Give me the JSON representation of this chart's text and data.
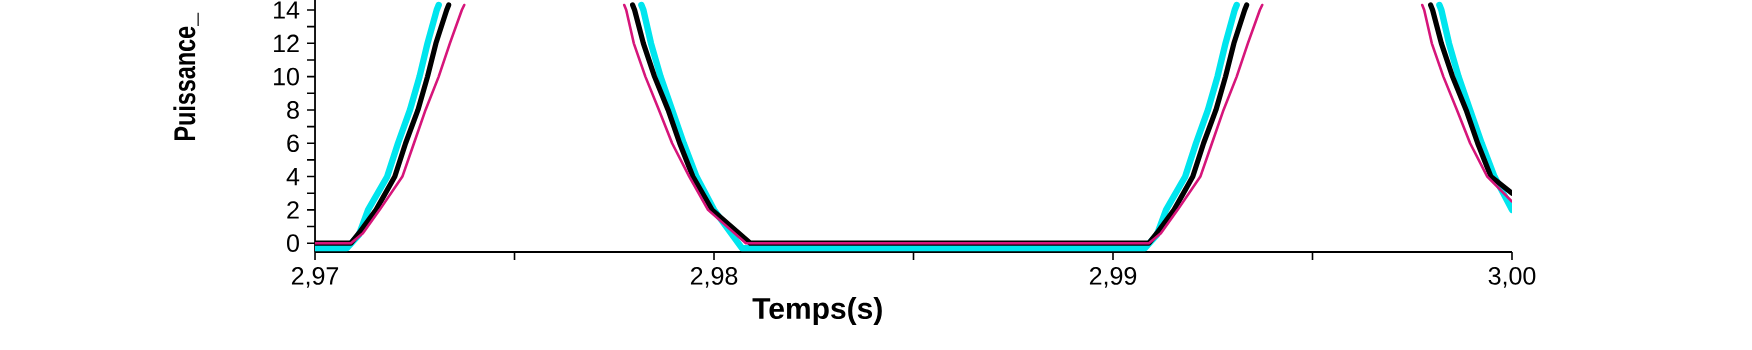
{
  "chart_data": {
    "type": "line",
    "xlabel": "Temps(s)",
    "ylabel": "Puissance_",
    "xlim": [
      2.97,
      3.0
    ],
    "ylim": [
      -0.53,
      14.6
    ],
    "xticks": [
      {
        "value": 2.97,
        "label": "2,97"
      },
      {
        "value": 2.975,
        "label": null
      },
      {
        "value": 2.98,
        "label": "2,98"
      },
      {
        "value": 2.985,
        "label": null
      },
      {
        "value": 2.99,
        "label": "2,99"
      },
      {
        "value": 2.995,
        "label": null
      },
      {
        "value": 3.0,
        "label": "3,00"
      }
    ],
    "yticks": [
      0,
      {
        "value": 1,
        "label": null
      },
      2,
      {
        "value": 3,
        "label": null
      },
      4,
      {
        "value": 5,
        "label": null
      },
      6,
      {
        "value": 7,
        "label": null
      },
      8,
      {
        "value": 9,
        "label": null
      },
      10,
      {
        "value": 11,
        "label": null
      },
      12,
      {
        "value": 13,
        "label": null
      },
      14
    ],
    "grid": false,
    "marker": "none",
    "line_style": "solid",
    "series": [
      {
        "color": "#00e5ee",
        "x": [
          2.97,
          2.9708,
          2.9711,
          2.97133,
          2.97181,
          2.97208,
          2.97238,
          2.97262,
          2.97282,
          2.97305,
          2.9731,
          2.9757,
          2.97818,
          2.97823,
          2.97842,
          2.97866,
          2.97895,
          2.97924,
          2.97956,
          2.98,
          2.9807,
          2.9908,
          2.9911,
          2.99133,
          2.99181,
          2.99208,
          2.99238,
          2.99262,
          2.99282,
          2.99305,
          2.9931,
          2.9957,
          2.99818,
          2.99823,
          2.99842,
          2.99866,
          2.99895,
          2.99924,
          2.99956,
          3.0
        ],
        "values": [
          -0.3,
          -0.3,
          0.5,
          2,
          4,
          6,
          8,
          10,
          12,
          14,
          14.3,
          null,
          14.3,
          14,
          12,
          10,
          8,
          6,
          4,
          2,
          -0.3,
          -0.3,
          0.5,
          2,
          4,
          6,
          8,
          10,
          12,
          14,
          14.3,
          null,
          14.3,
          14,
          12,
          10,
          8,
          6,
          4,
          2
        ]
      },
      {
        "color": "#000000",
        "x": [
          2.97,
          2.9709,
          2.9711,
          2.97153,
          2.972,
          2.97227,
          2.97258,
          2.97282,
          2.97303,
          2.9733,
          2.97335,
          2.9757,
          2.97796,
          2.97801,
          2.97823,
          2.97851,
          2.97885,
          2.97914,
          2.97947,
          2.97995,
          2.98091,
          2.9909,
          2.9911,
          2.99153,
          2.992,
          2.99227,
          2.99258,
          2.99282,
          2.99303,
          2.9933,
          2.99335,
          2.9957,
          2.99796,
          2.99801,
          2.99823,
          2.99851,
          2.99885,
          2.99914,
          2.99947,
          3.0
        ],
        "values": [
          0,
          0,
          0.6,
          2,
          4,
          6,
          8,
          10,
          12,
          14,
          14.3,
          null,
          14.3,
          14,
          12,
          10,
          8,
          6,
          4,
          2,
          0,
          0,
          0.6,
          2,
          4,
          6,
          8,
          10,
          12,
          14,
          14.3,
          null,
          14.3,
          14,
          12,
          10,
          8,
          6,
          4,
          3
        ]
      },
      {
        "color": "#d6157a",
        "x": [
          2.97,
          2.9709,
          2.9712,
          2.97162,
          2.97219,
          2.97248,
          2.97277,
          2.9731,
          2.97338,
          2.97368,
          2.97374,
          2.9757,
          2.97775,
          2.9778,
          2.97799,
          2.97828,
          2.97862,
          2.97895,
          2.97938,
          2.97985,
          2.9808,
          2.9909,
          2.9912,
          2.99162,
          2.99219,
          2.99248,
          2.99277,
          2.9931,
          2.99338,
          2.99368,
          2.99374,
          2.9957,
          2.99775,
          2.9978,
          2.99799,
          2.99828,
          2.99862,
          2.99895,
          2.99938,
          3.0
        ],
        "values": [
          0,
          0,
          0.6,
          2,
          4,
          6,
          8,
          10,
          12,
          14,
          14.3,
          null,
          14.3,
          14,
          12,
          10,
          8,
          6,
          4,
          2,
          0,
          0,
          0.6,
          2,
          4,
          6,
          8,
          10,
          12,
          14,
          14.3,
          null,
          14.3,
          14,
          12,
          10,
          8,
          6,
          4,
          2.5
        ]
      }
    ]
  }
}
